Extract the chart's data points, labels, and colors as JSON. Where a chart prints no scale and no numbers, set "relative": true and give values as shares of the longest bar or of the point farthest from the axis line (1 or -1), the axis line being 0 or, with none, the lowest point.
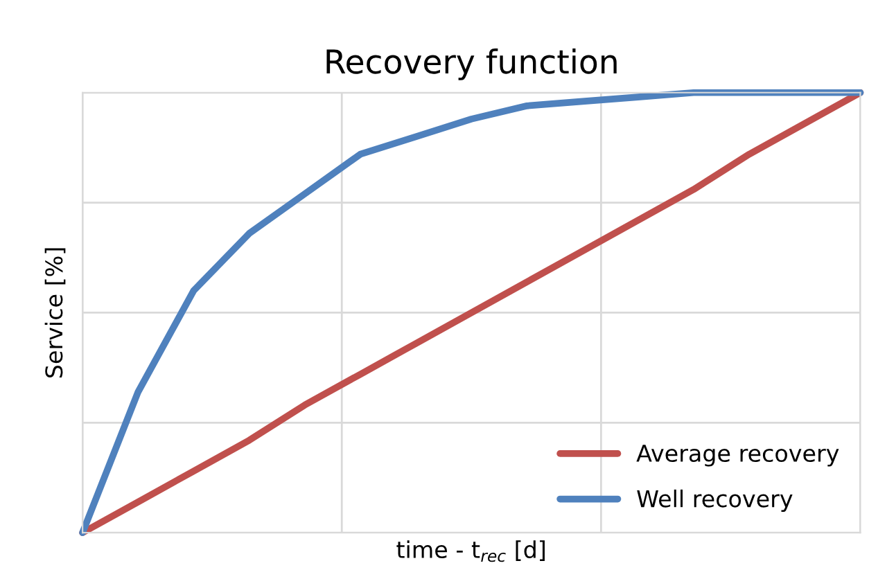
{
  "chart_data": {
    "type": "line",
    "title": "Recovery function",
    "xlabel": "time - t$_{rec}$ [d]",
    "ylabel": "Service [%]",
    "relative": true,
    "categories": [
      null,
      null,
      null,
      null,
      null,
      null,
      null,
      null,
      null,
      null,
      null,
      null,
      null,
      null,
      null
    ],
    "series": [
      {
        "name": "Average recovery",
        "color": "#c0504d",
        "values": [
          0,
          0.07,
          0.14,
          0.21,
          0.29,
          0.36,
          0.43,
          0.5,
          0.57,
          0.64,
          0.71,
          0.78,
          0.86,
          0.93,
          1.0
        ]
      },
      {
        "name": "Well recovery",
        "color": "#4f81bd",
        "values": [
          0,
          0.32,
          0.55,
          0.68,
          0.77,
          0.86,
          0.9,
          0.94,
          0.97,
          0.98,
          0.99,
          1.0,
          1.0,
          1.0,
          1.0
        ]
      }
    ],
    "grid": true,
    "legend": "bottom right"
  }
}
